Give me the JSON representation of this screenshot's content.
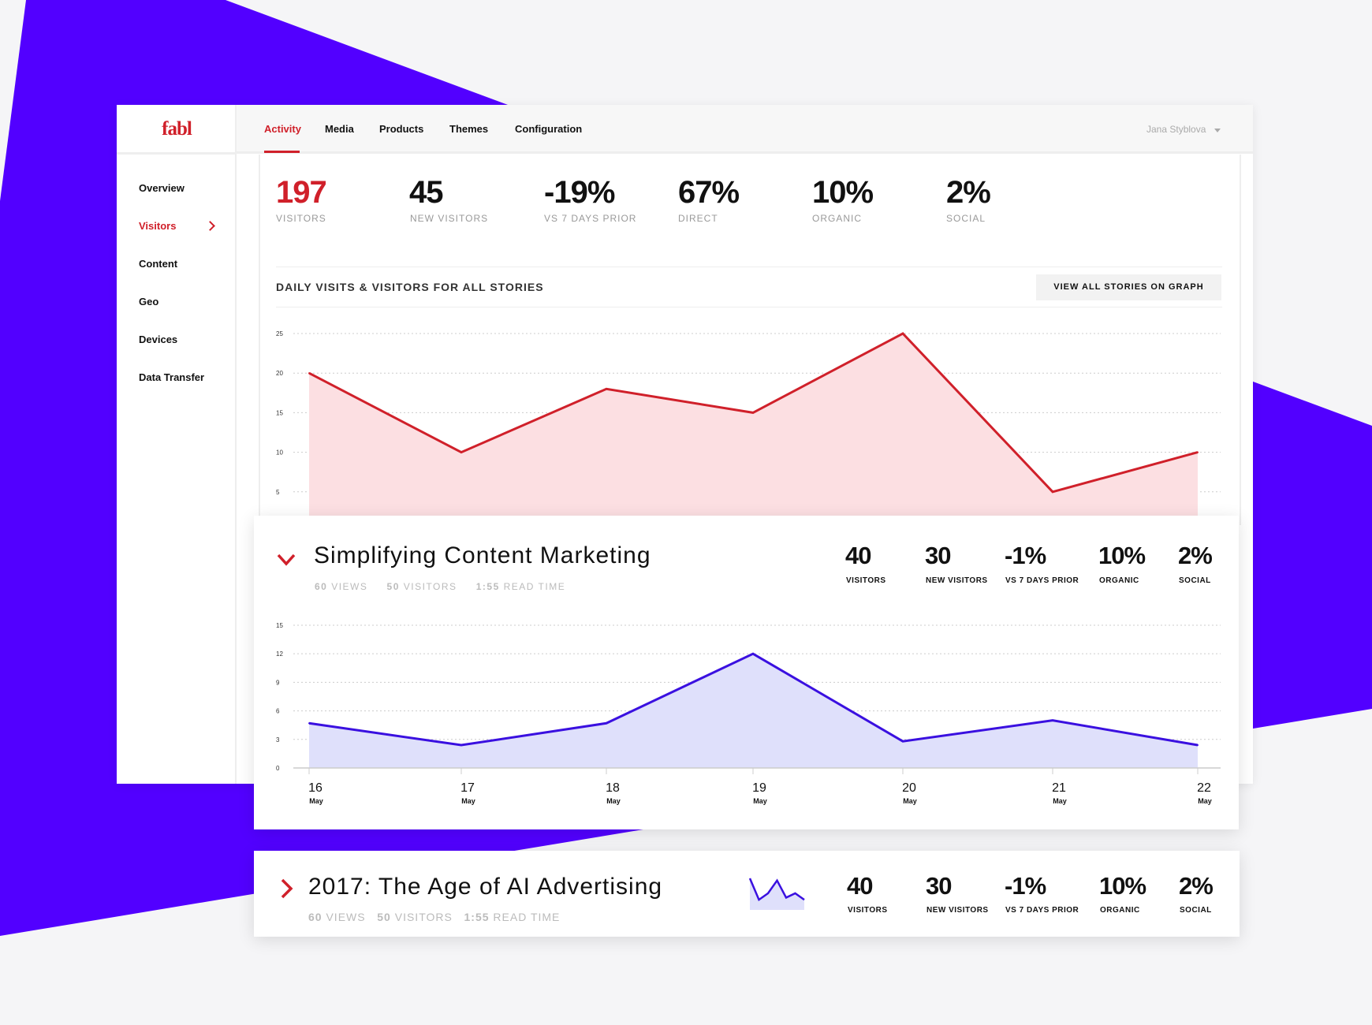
{
  "brand": {
    "logo": "fabl",
    "accent": "#d0202a",
    "purple": "#5200ff"
  },
  "tabs": [
    {
      "label": "Activity"
    },
    {
      "label": "Media"
    },
    {
      "label": "Products"
    },
    {
      "label": "Themes"
    },
    {
      "label": "Configuration"
    }
  ],
  "user": {
    "name": "Jana Styblova"
  },
  "sidebar": {
    "items": [
      {
        "label": "Overview"
      },
      {
        "label": "Visitors"
      },
      {
        "label": "Content"
      },
      {
        "label": "Geo"
      },
      {
        "label": "Devices"
      },
      {
        "label": "Data Transfer"
      }
    ]
  },
  "summary": [
    {
      "value": "197",
      "label": "VISITORS"
    },
    {
      "value": "45",
      "label": "NEW VISITORS"
    },
    {
      "value": "-19%",
      "label": "VS 7 DAYS PRIOR"
    },
    {
      "value": "67%",
      "label": "DIRECT"
    },
    {
      "value": "10%",
      "label": "ORGANIC"
    },
    {
      "value": "2%",
      "label": "SOCIAL"
    }
  ],
  "main_chart": {
    "title": "DAILY VISITS & VISITORS FOR ALL STORIES",
    "button": "VIEW ALL STORIES ON GRAPH"
  },
  "chart_data": [
    {
      "type": "area",
      "yticks": [
        "5",
        "10",
        "15",
        "20",
        "25"
      ],
      "ylim": [
        0,
        25
      ],
      "values": [
        20,
        10,
        18,
        15,
        25,
        5,
        10
      ],
      "color": "#d0202a",
      "fill": "#fcdfe2"
    },
    {
      "type": "area",
      "yticks": [
        "0",
        "3",
        "6",
        "9",
        "12",
        "15"
      ],
      "ylim": [
        0,
        15
      ],
      "values": [
        4.7,
        2.4,
        4.7,
        12,
        2.8,
        5,
        2.4
      ],
      "color": "#3a10e0",
      "fill": "#dfe0fb",
      "x": [
        {
          "day": "16",
          "month": "May"
        },
        {
          "day": "17",
          "month": "May"
        },
        {
          "day": "18",
          "month": "May"
        },
        {
          "day": "19",
          "month": "May"
        },
        {
          "day": "20",
          "month": "May"
        },
        {
          "day": "21",
          "month": "May"
        },
        {
          "day": "22",
          "month": "May"
        }
      ]
    }
  ],
  "stories": [
    {
      "title": "Simplifying Content Marketing",
      "views": "60",
      "views_label": "VIEWS",
      "visitors": "50",
      "visitors_label": "VISITORS",
      "read": "1:55",
      "read_label": "READ TIME",
      "stats": [
        {
          "value": "40",
          "label": "VISITORS"
        },
        {
          "value": "30",
          "label": "NEW VISITORS"
        },
        {
          "value": "-1%",
          "label": "VS 7 DAYS PRIOR"
        },
        {
          "value": "10%",
          "label": "ORGANIC"
        },
        {
          "value": "2%",
          "label": "SOCIAL"
        }
      ]
    },
    {
      "title": "2017: The Age of AI Advertising",
      "views": "60",
      "views_label": "VIEWS",
      "visitors": "50",
      "visitors_label": "VISITORS",
      "read": "1:55",
      "read_label": "READ TIME",
      "sparkline": [
        14,
        4,
        7,
        13,
        5,
        7,
        4
      ],
      "stats": [
        {
          "value": "40",
          "label": "VISITORS"
        },
        {
          "value": "30",
          "label": "NEW VISITORS"
        },
        {
          "value": "-1%",
          "label": "VS 7 DAYS PRIOR"
        },
        {
          "value": "10%",
          "label": "ORGANIC"
        },
        {
          "value": "2%",
          "label": "SOCIAL"
        }
      ]
    }
  ]
}
